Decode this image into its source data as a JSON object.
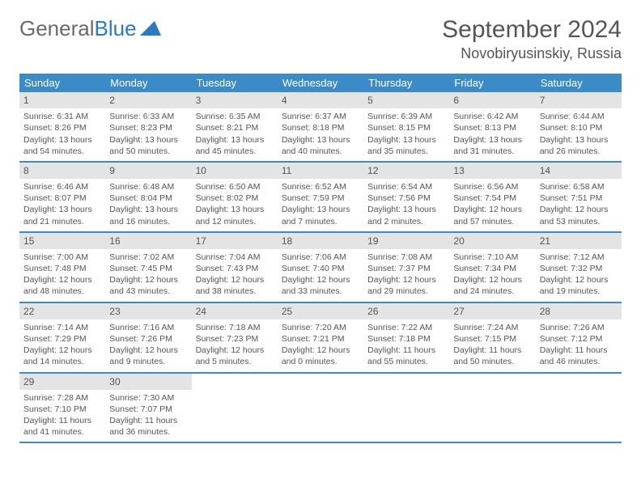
{
  "logo": {
    "text1": "General",
    "text2": "Blue"
  },
  "title": "September 2024",
  "location": "Novobiryusinskiy, Russia",
  "colors": {
    "header_bg": "#3b8bc9",
    "header_text": "#ffffff",
    "daynum_bg": "#e4e4e4",
    "border": "#3b8bc9",
    "text": "#555555",
    "logo_gray": "#6a6a6a",
    "logo_blue": "#2a7bbf",
    "background": "#ffffff"
  },
  "day_names": [
    "Sunday",
    "Monday",
    "Tuesday",
    "Wednesday",
    "Thursday",
    "Friday",
    "Saturday"
  ],
  "weeks": [
    [
      {
        "n": "1",
        "sr": "Sunrise: 6:31 AM",
        "ss": "Sunset: 8:26 PM",
        "dl": "Daylight: 13 hours and 54 minutes."
      },
      {
        "n": "2",
        "sr": "Sunrise: 6:33 AM",
        "ss": "Sunset: 8:23 PM",
        "dl": "Daylight: 13 hours and 50 minutes."
      },
      {
        "n": "3",
        "sr": "Sunrise: 6:35 AM",
        "ss": "Sunset: 8:21 PM",
        "dl": "Daylight: 13 hours and 45 minutes."
      },
      {
        "n": "4",
        "sr": "Sunrise: 6:37 AM",
        "ss": "Sunset: 8:18 PM",
        "dl": "Daylight: 13 hours and 40 minutes."
      },
      {
        "n": "5",
        "sr": "Sunrise: 6:39 AM",
        "ss": "Sunset: 8:15 PM",
        "dl": "Daylight: 13 hours and 35 minutes."
      },
      {
        "n": "6",
        "sr": "Sunrise: 6:42 AM",
        "ss": "Sunset: 8:13 PM",
        "dl": "Daylight: 13 hours and 31 minutes."
      },
      {
        "n": "7",
        "sr": "Sunrise: 6:44 AM",
        "ss": "Sunset: 8:10 PM",
        "dl": "Daylight: 13 hours and 26 minutes."
      }
    ],
    [
      {
        "n": "8",
        "sr": "Sunrise: 6:46 AM",
        "ss": "Sunset: 8:07 PM",
        "dl": "Daylight: 13 hours and 21 minutes."
      },
      {
        "n": "9",
        "sr": "Sunrise: 6:48 AM",
        "ss": "Sunset: 8:04 PM",
        "dl": "Daylight: 13 hours and 16 minutes."
      },
      {
        "n": "10",
        "sr": "Sunrise: 6:50 AM",
        "ss": "Sunset: 8:02 PM",
        "dl": "Daylight: 13 hours and 12 minutes."
      },
      {
        "n": "11",
        "sr": "Sunrise: 6:52 AM",
        "ss": "Sunset: 7:59 PM",
        "dl": "Daylight: 13 hours and 7 minutes."
      },
      {
        "n": "12",
        "sr": "Sunrise: 6:54 AM",
        "ss": "Sunset: 7:56 PM",
        "dl": "Daylight: 13 hours and 2 minutes."
      },
      {
        "n": "13",
        "sr": "Sunrise: 6:56 AM",
        "ss": "Sunset: 7:54 PM",
        "dl": "Daylight: 12 hours and 57 minutes."
      },
      {
        "n": "14",
        "sr": "Sunrise: 6:58 AM",
        "ss": "Sunset: 7:51 PM",
        "dl": "Daylight: 12 hours and 53 minutes."
      }
    ],
    [
      {
        "n": "15",
        "sr": "Sunrise: 7:00 AM",
        "ss": "Sunset: 7:48 PM",
        "dl": "Daylight: 12 hours and 48 minutes."
      },
      {
        "n": "16",
        "sr": "Sunrise: 7:02 AM",
        "ss": "Sunset: 7:45 PM",
        "dl": "Daylight: 12 hours and 43 minutes."
      },
      {
        "n": "17",
        "sr": "Sunrise: 7:04 AM",
        "ss": "Sunset: 7:43 PM",
        "dl": "Daylight: 12 hours and 38 minutes."
      },
      {
        "n": "18",
        "sr": "Sunrise: 7:06 AM",
        "ss": "Sunset: 7:40 PM",
        "dl": "Daylight: 12 hours and 33 minutes."
      },
      {
        "n": "19",
        "sr": "Sunrise: 7:08 AM",
        "ss": "Sunset: 7:37 PM",
        "dl": "Daylight: 12 hours and 29 minutes."
      },
      {
        "n": "20",
        "sr": "Sunrise: 7:10 AM",
        "ss": "Sunset: 7:34 PM",
        "dl": "Daylight: 12 hours and 24 minutes."
      },
      {
        "n": "21",
        "sr": "Sunrise: 7:12 AM",
        "ss": "Sunset: 7:32 PM",
        "dl": "Daylight: 12 hours and 19 minutes."
      }
    ],
    [
      {
        "n": "22",
        "sr": "Sunrise: 7:14 AM",
        "ss": "Sunset: 7:29 PM",
        "dl": "Daylight: 12 hours and 14 minutes."
      },
      {
        "n": "23",
        "sr": "Sunrise: 7:16 AM",
        "ss": "Sunset: 7:26 PM",
        "dl": "Daylight: 12 hours and 9 minutes."
      },
      {
        "n": "24",
        "sr": "Sunrise: 7:18 AM",
        "ss": "Sunset: 7:23 PM",
        "dl": "Daylight: 12 hours and 5 minutes."
      },
      {
        "n": "25",
        "sr": "Sunrise: 7:20 AM",
        "ss": "Sunset: 7:21 PM",
        "dl": "Daylight: 12 hours and 0 minutes."
      },
      {
        "n": "26",
        "sr": "Sunrise: 7:22 AM",
        "ss": "Sunset: 7:18 PM",
        "dl": "Daylight: 11 hours and 55 minutes."
      },
      {
        "n": "27",
        "sr": "Sunrise: 7:24 AM",
        "ss": "Sunset: 7:15 PM",
        "dl": "Daylight: 11 hours and 50 minutes."
      },
      {
        "n": "28",
        "sr": "Sunrise: 7:26 AM",
        "ss": "Sunset: 7:12 PM",
        "dl": "Daylight: 11 hours and 46 minutes."
      }
    ],
    [
      {
        "n": "29",
        "sr": "Sunrise: 7:28 AM",
        "ss": "Sunset: 7:10 PM",
        "dl": "Daylight: 11 hours and 41 minutes."
      },
      {
        "n": "30",
        "sr": "Sunrise: 7:30 AM",
        "ss": "Sunset: 7:07 PM",
        "dl": "Daylight: 11 hours and 36 minutes."
      },
      null,
      null,
      null,
      null,
      null
    ]
  ]
}
